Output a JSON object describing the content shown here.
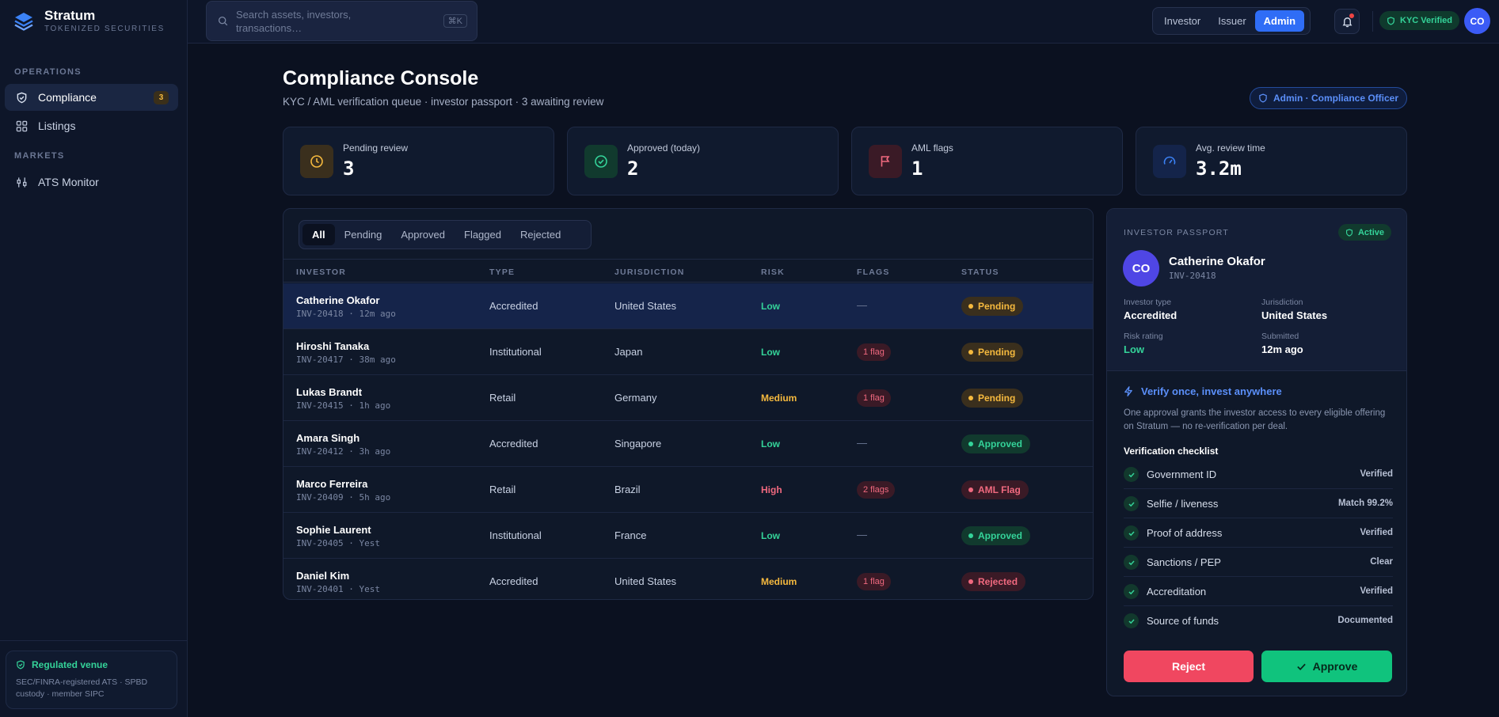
{
  "brand": {
    "name": "Stratum",
    "tagline": "TOKENIZED SECURITIES"
  },
  "sidebar": {
    "sections": [
      {
        "title": "OPERATIONS"
      },
      {
        "title": "MARKETS"
      }
    ],
    "items": [
      {
        "label": "Compliance",
        "badge": "3",
        "icon": "shield-check-icon"
      },
      {
        "label": "Listings",
        "icon": "grid-icon"
      },
      {
        "label": "ATS Monitor",
        "icon": "sliders-icon"
      }
    ],
    "venue": {
      "title": "Regulated venue",
      "text": "SEC/FINRA-registered ATS · SPBD custody · member SIPC"
    }
  },
  "topbar": {
    "search": {
      "placeholder": "Search assets, investors, transactions…",
      "shortcut": "⌘K"
    },
    "roles": [
      "Investor",
      "Issuer",
      "Admin"
    ],
    "active_role": "Admin",
    "kyc_label": "KYC Verified",
    "avatar_initials": "CO"
  },
  "page": {
    "title": "Compliance Console",
    "subtitle": "KYC / AML verification queue · investor passport · 3 awaiting review",
    "role_pill": "Admin · Compliance Officer"
  },
  "stats": [
    {
      "label": "Pending review",
      "value": "3",
      "icon": "clock-icon",
      "color": "#f5b93e"
    },
    {
      "label": "Approved (today)",
      "value": "2",
      "icon": "check-circle-icon",
      "color": "#34d399"
    },
    {
      "label": "AML flags",
      "value": "1",
      "icon": "flag-icon",
      "color": "#f0697f"
    },
    {
      "label": "Avg. review time",
      "value": "3.2m",
      "icon": "gauge-icon",
      "color": "#3b82f6"
    }
  ],
  "queue": {
    "tabs": [
      "All",
      "Pending",
      "Approved",
      "Flagged",
      "Rejected"
    ],
    "active_tab": "All",
    "columns": [
      "INVESTOR",
      "TYPE",
      "JURISDICTION",
      "RISK",
      "FLAGS",
      "STATUS"
    ],
    "rows": [
      {
        "name": "Catherine Okafor",
        "meta": "INV-20418 · 12m ago",
        "type": "Accredited",
        "jurisdiction": "United States",
        "risk": "Low",
        "flags": "—",
        "status": "Pending"
      },
      {
        "name": "Hiroshi Tanaka",
        "meta": "INV-20417 · 38m ago",
        "type": "Institutional",
        "jurisdiction": "Japan",
        "risk": "Low",
        "flags": "1 flag",
        "status": "Pending"
      },
      {
        "name": "Lukas Brandt",
        "meta": "INV-20415 · 1h ago",
        "type": "Retail",
        "jurisdiction": "Germany",
        "risk": "Medium",
        "flags": "1 flag",
        "status": "Pending"
      },
      {
        "name": "Amara Singh",
        "meta": "INV-20412 · 3h ago",
        "type": "Accredited",
        "jurisdiction": "Singapore",
        "risk": "Low",
        "flags": "—",
        "status": "Approved"
      },
      {
        "name": "Marco Ferreira",
        "meta": "INV-20409 · 5h ago",
        "type": "Retail",
        "jurisdiction": "Brazil",
        "risk": "High",
        "flags": "2 flags",
        "status": "AML Flag"
      },
      {
        "name": "Sophie Laurent",
        "meta": "INV-20405 · Yest",
        "type": "Institutional",
        "jurisdiction": "France",
        "risk": "Low",
        "flags": "—",
        "status": "Approved"
      },
      {
        "name": "Daniel Kim",
        "meta": "INV-20401 · Yest",
        "type": "Accredited",
        "jurisdiction": "United States",
        "risk": "Medium",
        "flags": "1 flag",
        "status": "Rejected"
      }
    ]
  },
  "passport": {
    "label": "INVESTOR PASSPORT",
    "status": "Active",
    "initials": "CO",
    "name": "Catherine Okafor",
    "id": "INV-20418",
    "fields": [
      {
        "label": "Investor type",
        "value": "Accredited"
      },
      {
        "label": "Jurisdiction",
        "value": "United States"
      },
      {
        "label": "Risk rating",
        "value": "Low"
      },
      {
        "label": "Submitted",
        "value": "12m ago"
      }
    ],
    "verify_title": "Verify once, invest anywhere",
    "verify_text": "One approval grants the investor access to every eligible offering on Stratum — no re-verification per deal.",
    "checklist_title": "Verification checklist",
    "checklist": [
      {
        "label": "Government ID",
        "value": "Verified"
      },
      {
        "label": "Selfie / liveness",
        "value": "Match 99.2%"
      },
      {
        "label": "Proof of address",
        "value": "Verified"
      },
      {
        "label": "Sanctions / PEP",
        "value": "Clear"
      },
      {
        "label": "Accreditation",
        "value": "Verified"
      },
      {
        "label": "Source of funds",
        "value": "Documented"
      }
    ],
    "reject_label": "Reject",
    "approve_label": "Approve"
  },
  "colors": {
    "accent": "#2f6df6",
    "success": "#34d399",
    "warning": "#f5b93e",
    "danger": "#f0697f",
    "background": "#0b1120"
  }
}
